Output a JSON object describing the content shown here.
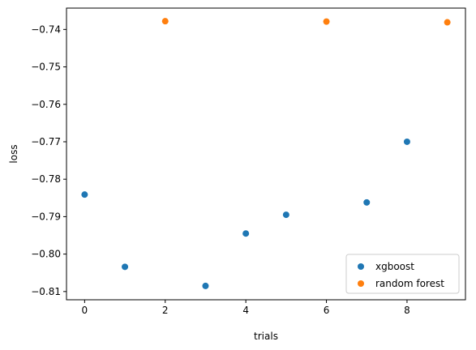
{
  "chart_data": {
    "type": "scatter",
    "title": "",
    "xlabel": "trials",
    "ylabel": "loss",
    "xlim": [
      -0.45,
      9.45
    ],
    "ylim": [
      -0.8122,
      -0.7343
    ],
    "xticks": [
      0,
      2,
      4,
      6,
      8
    ],
    "xtick_labels": [
      "0",
      "2",
      "4",
      "6",
      "8"
    ],
    "yticks": [
      -0.74,
      -0.75,
      -0.76,
      -0.77,
      -0.78,
      -0.79,
      -0.8,
      -0.81
    ],
    "ytick_labels": [
      "−0.74",
      "−0.75",
      "−0.76",
      "−0.77",
      "−0.78",
      "−0.79",
      "−0.80",
      "−0.81"
    ],
    "grid": false,
    "legend_position": "lower-right",
    "series": [
      {
        "name": "xgboost",
        "color": "#1f77b4",
        "points": [
          {
            "x": 0,
            "y": -0.7841
          },
          {
            "x": 1,
            "y": -0.8034
          },
          {
            "x": 3,
            "y": -0.8085
          },
          {
            "x": 4,
            "y": -0.7945
          },
          {
            "x": 5,
            "y": -0.7895
          },
          {
            "x": 7,
            "y": -0.7862
          },
          {
            "x": 8,
            "y": -0.77
          }
        ]
      },
      {
        "name": "random forest",
        "color": "#ff7f0e",
        "points": [
          {
            "x": 2,
            "y": -0.7378
          },
          {
            "x": 6,
            "y": -0.7379
          },
          {
            "x": 9,
            "y": -0.7381
          }
        ]
      }
    ]
  }
}
